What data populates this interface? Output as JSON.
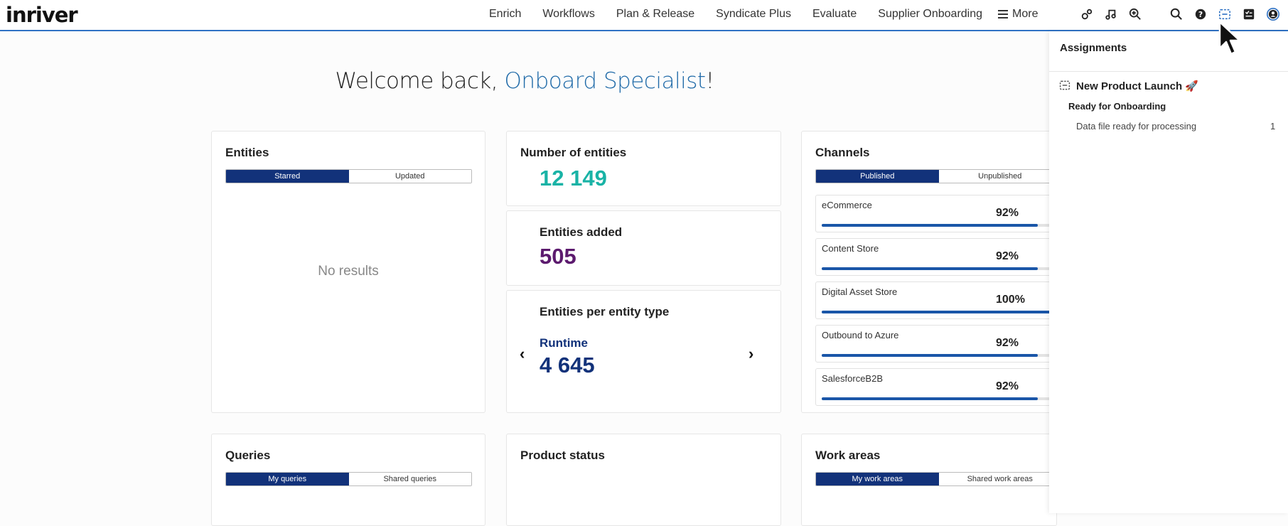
{
  "app": {
    "logo": "inriver"
  },
  "nav": {
    "items": [
      "Enrich",
      "Workflows",
      "Plan & Release",
      "Syndicate Plus",
      "Evaluate",
      "Supplier Onboarding"
    ],
    "more": "More"
  },
  "header_icons": [
    "settings-gears-icon",
    "music-note-icon",
    "zoom-in-icon",
    "search-icon",
    "help-icon",
    "assignments-icon",
    "tasks-checklist-icon",
    "user-avatar-icon"
  ],
  "welcome": {
    "prefix": "Welcome back, ",
    "user": "Onboard Specialist",
    "suffix": "!"
  },
  "entities": {
    "title": "Entities",
    "tabs": [
      "Starred",
      "Updated"
    ],
    "active_tab": "Starred",
    "empty": "No results"
  },
  "count": {
    "title": "Number of entities",
    "value": "12 149",
    "color": "#19b3a6"
  },
  "added": {
    "title": "Entities added",
    "value": "505",
    "color": "#5c1a6e"
  },
  "per_type": {
    "title": "Entities per entity type",
    "type": "Runtime",
    "value": "4 645",
    "color": "#12327a"
  },
  "channels": {
    "title": "Channels",
    "tabs": [
      "Published",
      "Unpublished"
    ],
    "active_tab": "Published",
    "items": [
      {
        "name": "eCommerce",
        "percent": "92%",
        "progress": 0.92
      },
      {
        "name": "Content Store",
        "percent": "92%",
        "progress": 0.92
      },
      {
        "name": "Digital Asset Store",
        "percent": "100%",
        "progress": 1.0
      },
      {
        "name": "Outbound to Azure",
        "percent": "92%",
        "progress": 0.92
      },
      {
        "name": "SalesforceB2B",
        "percent": "92%",
        "progress": 0.92
      }
    ]
  },
  "queries": {
    "title": "Queries",
    "tabs": [
      "My queries",
      "Shared queries"
    ],
    "active_tab": "My queries"
  },
  "product_status": {
    "title": "Product status"
  },
  "work_areas": {
    "title": "Work areas",
    "tabs": [
      "My work areas",
      "Shared work areas"
    ],
    "active_tab": "My work areas"
  },
  "assignments": {
    "title": "Assignments",
    "items": [
      {
        "name": "New Product Launch 🚀",
        "status": "Ready for Onboarding",
        "tasks": [
          {
            "label": "Data file ready for processing",
            "count": "1"
          }
        ]
      }
    ]
  },
  "colors": {
    "accent": "#2f72c4",
    "toggle_active": "#12327a",
    "progress": "#1a56a8",
    "welcome_user": "#1f6aa8"
  }
}
